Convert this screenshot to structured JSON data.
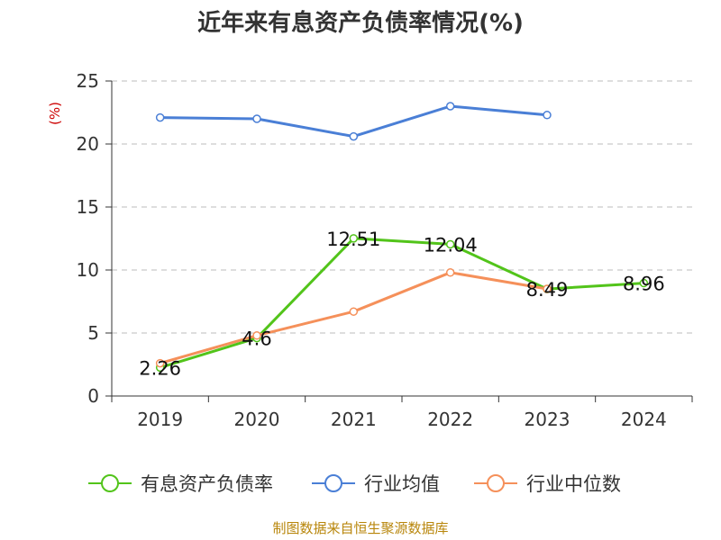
{
  "chart_data": {
    "type": "line",
    "title": "近年来有息资产负债率情况(%)",
    "ylabel": "(%)",
    "xlabel": "",
    "categories": [
      "2019",
      "2020",
      "2021",
      "2022",
      "2023",
      "2024"
    ],
    "ylim": [
      0,
      25
    ],
    "yticks": [
      0,
      5,
      10,
      15,
      20,
      25
    ],
    "grid": true,
    "legend_position": "bottom",
    "series": [
      {
        "name": "有息资产负债率",
        "color": "#52c41a",
        "values": [
          2.26,
          4.6,
          12.51,
          12.04,
          8.49,
          8.96
        ],
        "labels": [
          "2.26",
          "4.6",
          "12.51",
          "12.04",
          "8.49",
          "8.96"
        ]
      },
      {
        "name": "行业均值",
        "color": "#4a7fd6",
        "values": [
          22.1,
          22.0,
          20.6,
          23.0,
          22.3,
          null
        ]
      },
      {
        "name": "行业中位数",
        "color": "#f5905a",
        "values": [
          2.6,
          4.8,
          6.7,
          9.8,
          8.5,
          null
        ]
      }
    ]
  },
  "source": "制图数据来自恒生聚源数据库"
}
